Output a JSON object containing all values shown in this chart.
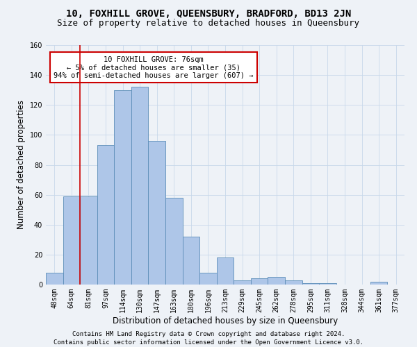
{
  "title": "10, FOXHILL GROVE, QUEENSBURY, BRADFORD, BD13 2JN",
  "subtitle": "Size of property relative to detached houses in Queensbury",
  "xlabel": "Distribution of detached houses by size in Queensbury",
  "ylabel": "Number of detached properties",
  "footer_line1": "Contains HM Land Registry data © Crown copyright and database right 2024.",
  "footer_line2": "Contains public sector information licensed under the Open Government Licence v3.0.",
  "annotation_title": "10 FOXHILL GROVE: 76sqm",
  "annotation_line2": "← 5% of detached houses are smaller (35)",
  "annotation_line3": "94% of semi-detached houses are larger (607) →",
  "bar_labels": [
    "48sqm",
    "64sqm",
    "81sqm",
    "97sqm",
    "114sqm",
    "130sqm",
    "147sqm",
    "163sqm",
    "180sqm",
    "196sqm",
    "213sqm",
    "229sqm",
    "245sqm",
    "262sqm",
    "278sqm",
    "295sqm",
    "311sqm",
    "328sqm",
    "344sqm",
    "361sqm",
    "377sqm"
  ],
  "bar_values": [
    8,
    59,
    59,
    93,
    130,
    132,
    96,
    58,
    32,
    8,
    18,
    3,
    4,
    5,
    3,
    1,
    1,
    0,
    0,
    2,
    0
  ],
  "bar_color": "#aec6e8",
  "bar_edge_color": "#5b8db8",
  "vline_x": 1.5,
  "ylim": [
    0,
    160
  ],
  "yticks": [
    0,
    20,
    40,
    60,
    80,
    100,
    120,
    140,
    160
  ],
  "grid_color": "#c8d8ea",
  "bg_color": "#eef2f7",
  "annotation_box_color": "#ffffff",
  "annotation_box_edge": "#cc0000",
  "vline_color": "#cc0000",
  "title_fontsize": 10,
  "subtitle_fontsize": 9,
  "axis_label_fontsize": 8.5,
  "tick_fontsize": 7,
  "annotation_fontsize": 7.5,
  "footer_fontsize": 6.5
}
